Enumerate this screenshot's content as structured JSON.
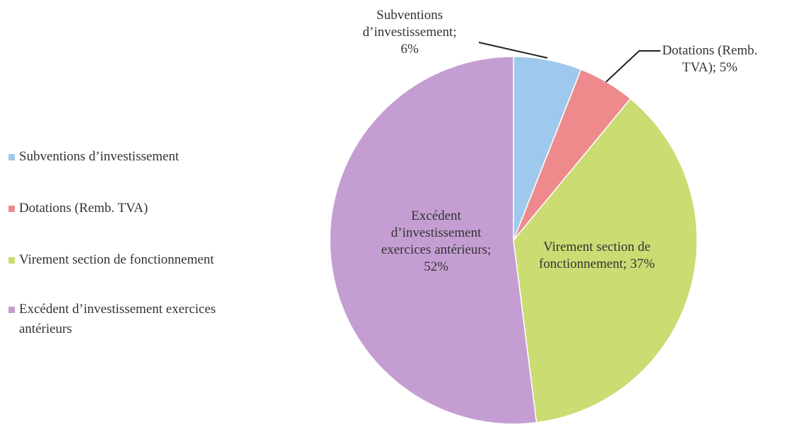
{
  "chart_data": {
    "type": "pie",
    "categories": [
      "Subventions d’investissement",
      "Dotations (Remb. TVA)",
      "Virement section de fonctionnement",
      "Excédent d’investissement exercices antérieurs"
    ],
    "values": [
      6,
      5,
      37,
      52
    ],
    "value_labels": [
      "Subventions d’investissement; 6%",
      "Dotations (Remb. TVA); 5%",
      "Virement section de fonctionnement; 37%",
      "Excédent d’investissement exercices antérieurs; 52%"
    ],
    "colors": [
      "#9fc9ec",
      "#ee8a8c",
      "#cadc72",
      "#c49ed2"
    ],
    "legend": "left"
  }
}
